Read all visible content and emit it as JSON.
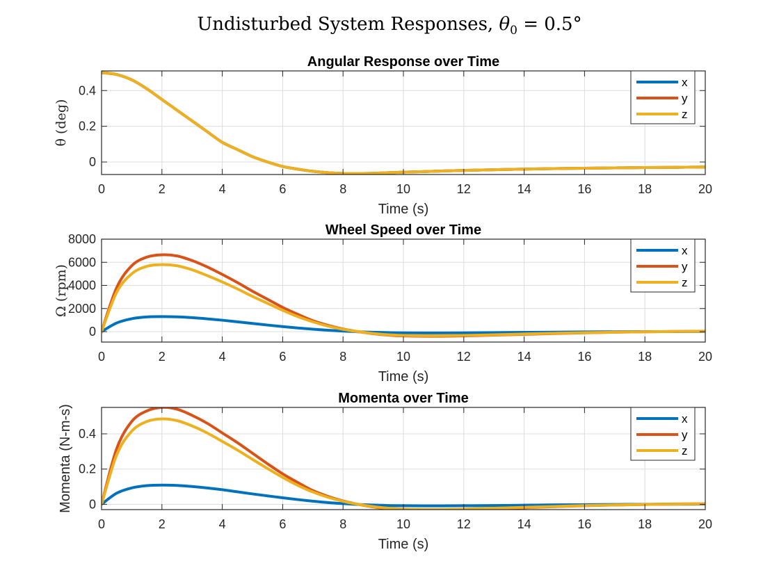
{
  "figure_title": {
    "text": "Undisturbed System Responses, ",
    "symbol": "θ",
    "subscript": "0",
    "tail": " = 0.5°"
  },
  "chart_data": [
    {
      "type": "line",
      "title": "Angular Response over Time",
      "xlabel": "Time (s)",
      "ylabel": "θ (deg)",
      "xlim": [
        0,
        20
      ],
      "ylim": [
        -0.07,
        0.51
      ],
      "xticks": [
        0,
        2,
        4,
        6,
        8,
        10,
        12,
        14,
        16,
        18,
        20
      ],
      "yticks": [
        0,
        0.2,
        0.4
      ],
      "grid": true,
      "legend": "top-right",
      "x": [
        0,
        0.5,
        1,
        1.5,
        2,
        2.5,
        3,
        3.5,
        4,
        4.5,
        5,
        5.5,
        6,
        6.5,
        7,
        7.5,
        8,
        8.5,
        9,
        9.5,
        10,
        11,
        12,
        13,
        14,
        15,
        16,
        17,
        18,
        19,
        20
      ],
      "series": [
        {
          "name": "x",
          "color": "#0072BD",
          "values": [
            0.5,
            0.49,
            0.46,
            0.41,
            0.35,
            0.29,
            0.23,
            0.17,
            0.11,
            0.07,
            0.03,
            0.0,
            -0.025,
            -0.04,
            -0.052,
            -0.06,
            -0.064,
            -0.064,
            -0.063,
            -0.06,
            -0.057,
            -0.052,
            -0.047,
            -0.043,
            -0.04,
            -0.037,
            -0.035,
            -0.033,
            -0.031,
            -0.03,
            -0.028
          ]
        },
        {
          "name": "y",
          "color": "#D95319",
          "values": [
            0.5,
            0.49,
            0.46,
            0.41,
            0.35,
            0.29,
            0.23,
            0.17,
            0.11,
            0.07,
            0.03,
            0.0,
            -0.025,
            -0.04,
            -0.052,
            -0.06,
            -0.064,
            -0.064,
            -0.063,
            -0.06,
            -0.057,
            -0.052,
            -0.047,
            -0.043,
            -0.04,
            -0.037,
            -0.035,
            -0.033,
            -0.031,
            -0.03,
            -0.028
          ]
        },
        {
          "name": "z",
          "color": "#EDB120",
          "values": [
            0.5,
            0.49,
            0.46,
            0.41,
            0.35,
            0.29,
            0.23,
            0.17,
            0.11,
            0.07,
            0.03,
            0.0,
            -0.025,
            -0.04,
            -0.052,
            -0.06,
            -0.064,
            -0.064,
            -0.063,
            -0.06,
            -0.057,
            -0.052,
            -0.047,
            -0.043,
            -0.04,
            -0.037,
            -0.035,
            -0.033,
            -0.031,
            -0.03,
            -0.028
          ]
        }
      ]
    },
    {
      "type": "line",
      "title": "Wheel Speed over Time",
      "xlabel": "Time (s)",
      "ylabel": "Ω (rpm)",
      "xlim": [
        0,
        20
      ],
      "ylim": [
        -900,
        8000
      ],
      "xticks": [
        0,
        2,
        4,
        6,
        8,
        10,
        12,
        14,
        16,
        18,
        20
      ],
      "yticks": [
        0,
        2000,
        4000,
        6000,
        8000
      ],
      "grid": true,
      "legend": "top-right",
      "x": [
        0,
        0.5,
        1,
        1.5,
        2,
        2.5,
        3,
        3.5,
        4,
        4.5,
        5,
        5.5,
        6,
        6.5,
        7,
        7.5,
        8,
        8.5,
        9,
        9.5,
        10,
        11,
        12,
        13,
        14,
        15,
        16,
        17,
        18,
        19,
        20
      ],
      "series": [
        {
          "name": "x",
          "color": "#0072BD",
          "values": [
            0,
            750,
            1120,
            1270,
            1300,
            1280,
            1210,
            1110,
            990,
            850,
            710,
            570,
            440,
            320,
            210,
            120,
            50,
            -10,
            -50,
            -80,
            -100,
            -110,
            -100,
            -80,
            -60,
            -40,
            -20,
            -10,
            0,
            5,
            10
          ]
        },
        {
          "name": "y",
          "color": "#D95319",
          "values": [
            0,
            3800,
            5700,
            6450,
            6650,
            6550,
            6150,
            5600,
            4950,
            4250,
            3500,
            2800,
            2100,
            1500,
            950,
            550,
            230,
            0,
            -180,
            -300,
            -370,
            -400,
            -370,
            -300,
            -230,
            -160,
            -100,
            -50,
            -10,
            20,
            40
          ]
        },
        {
          "name": "z",
          "color": "#EDB120",
          "values": [
            0,
            3400,
            5000,
            5650,
            5800,
            5700,
            5350,
            4850,
            4300,
            3700,
            3050,
            2450,
            1850,
            1300,
            850,
            480,
            200,
            0,
            -160,
            -270,
            -330,
            -350,
            -330,
            -270,
            -200,
            -140,
            -90,
            -50,
            -10,
            15,
            35
          ]
        }
      ]
    },
    {
      "type": "line",
      "title": "Momenta over Time",
      "xlabel": "Time (s)",
      "ylabel": "Momenta (N-m-s)",
      "xlim": [
        0,
        20
      ],
      "ylim": [
        -0.03,
        0.55
      ],
      "xticks": [
        0,
        2,
        4,
        6,
        8,
        10,
        12,
        14,
        16,
        18,
        20
      ],
      "yticks": [
        0,
        0.2,
        0.4
      ],
      "grid": true,
      "legend": "top-right",
      "x": [
        0,
        0.5,
        1,
        1.5,
        2,
        2.5,
        3,
        3.5,
        4,
        4.5,
        5,
        5.5,
        6,
        6.5,
        7,
        7.5,
        8,
        8.5,
        9,
        9.5,
        10,
        11,
        12,
        13,
        14,
        15,
        16,
        17,
        18,
        19,
        20
      ],
      "series": [
        {
          "name": "x",
          "color": "#0072BD",
          "values": [
            0,
            0.063,
            0.093,
            0.106,
            0.109,
            0.107,
            0.101,
            0.093,
            0.083,
            0.071,
            0.059,
            0.048,
            0.037,
            0.027,
            0.018,
            0.01,
            0.004,
            -0.001,
            -0.004,
            -0.007,
            -0.008,
            -0.009,
            -0.008,
            -0.007,
            -0.005,
            -0.003,
            -0.002,
            -0.001,
            0,
            0.0005,
            0.001
          ]
        },
        {
          "name": "y",
          "color": "#D95319",
          "values": [
            0,
            0.315,
            0.47,
            0.53,
            0.55,
            0.54,
            0.505,
            0.46,
            0.405,
            0.35,
            0.29,
            0.23,
            0.173,
            0.124,
            0.078,
            0.045,
            0.019,
            0,
            -0.015,
            -0.025,
            -0.03,
            -0.033,
            -0.03,
            -0.025,
            -0.019,
            -0.013,
            -0.008,
            -0.004,
            -0.001,
            0.002,
            0.003
          ]
        },
        {
          "name": "z",
          "color": "#EDB120",
          "values": [
            0,
            0.28,
            0.415,
            0.47,
            0.485,
            0.475,
            0.445,
            0.405,
            0.357,
            0.308,
            0.255,
            0.203,
            0.153,
            0.108,
            0.07,
            0.04,
            0.017,
            0,
            -0.013,
            -0.022,
            -0.027,
            -0.029,
            -0.027,
            -0.022,
            -0.017,
            -0.012,
            -0.007,
            -0.004,
            -0.001,
            0.0013,
            0.003
          ]
        }
      ]
    }
  ]
}
